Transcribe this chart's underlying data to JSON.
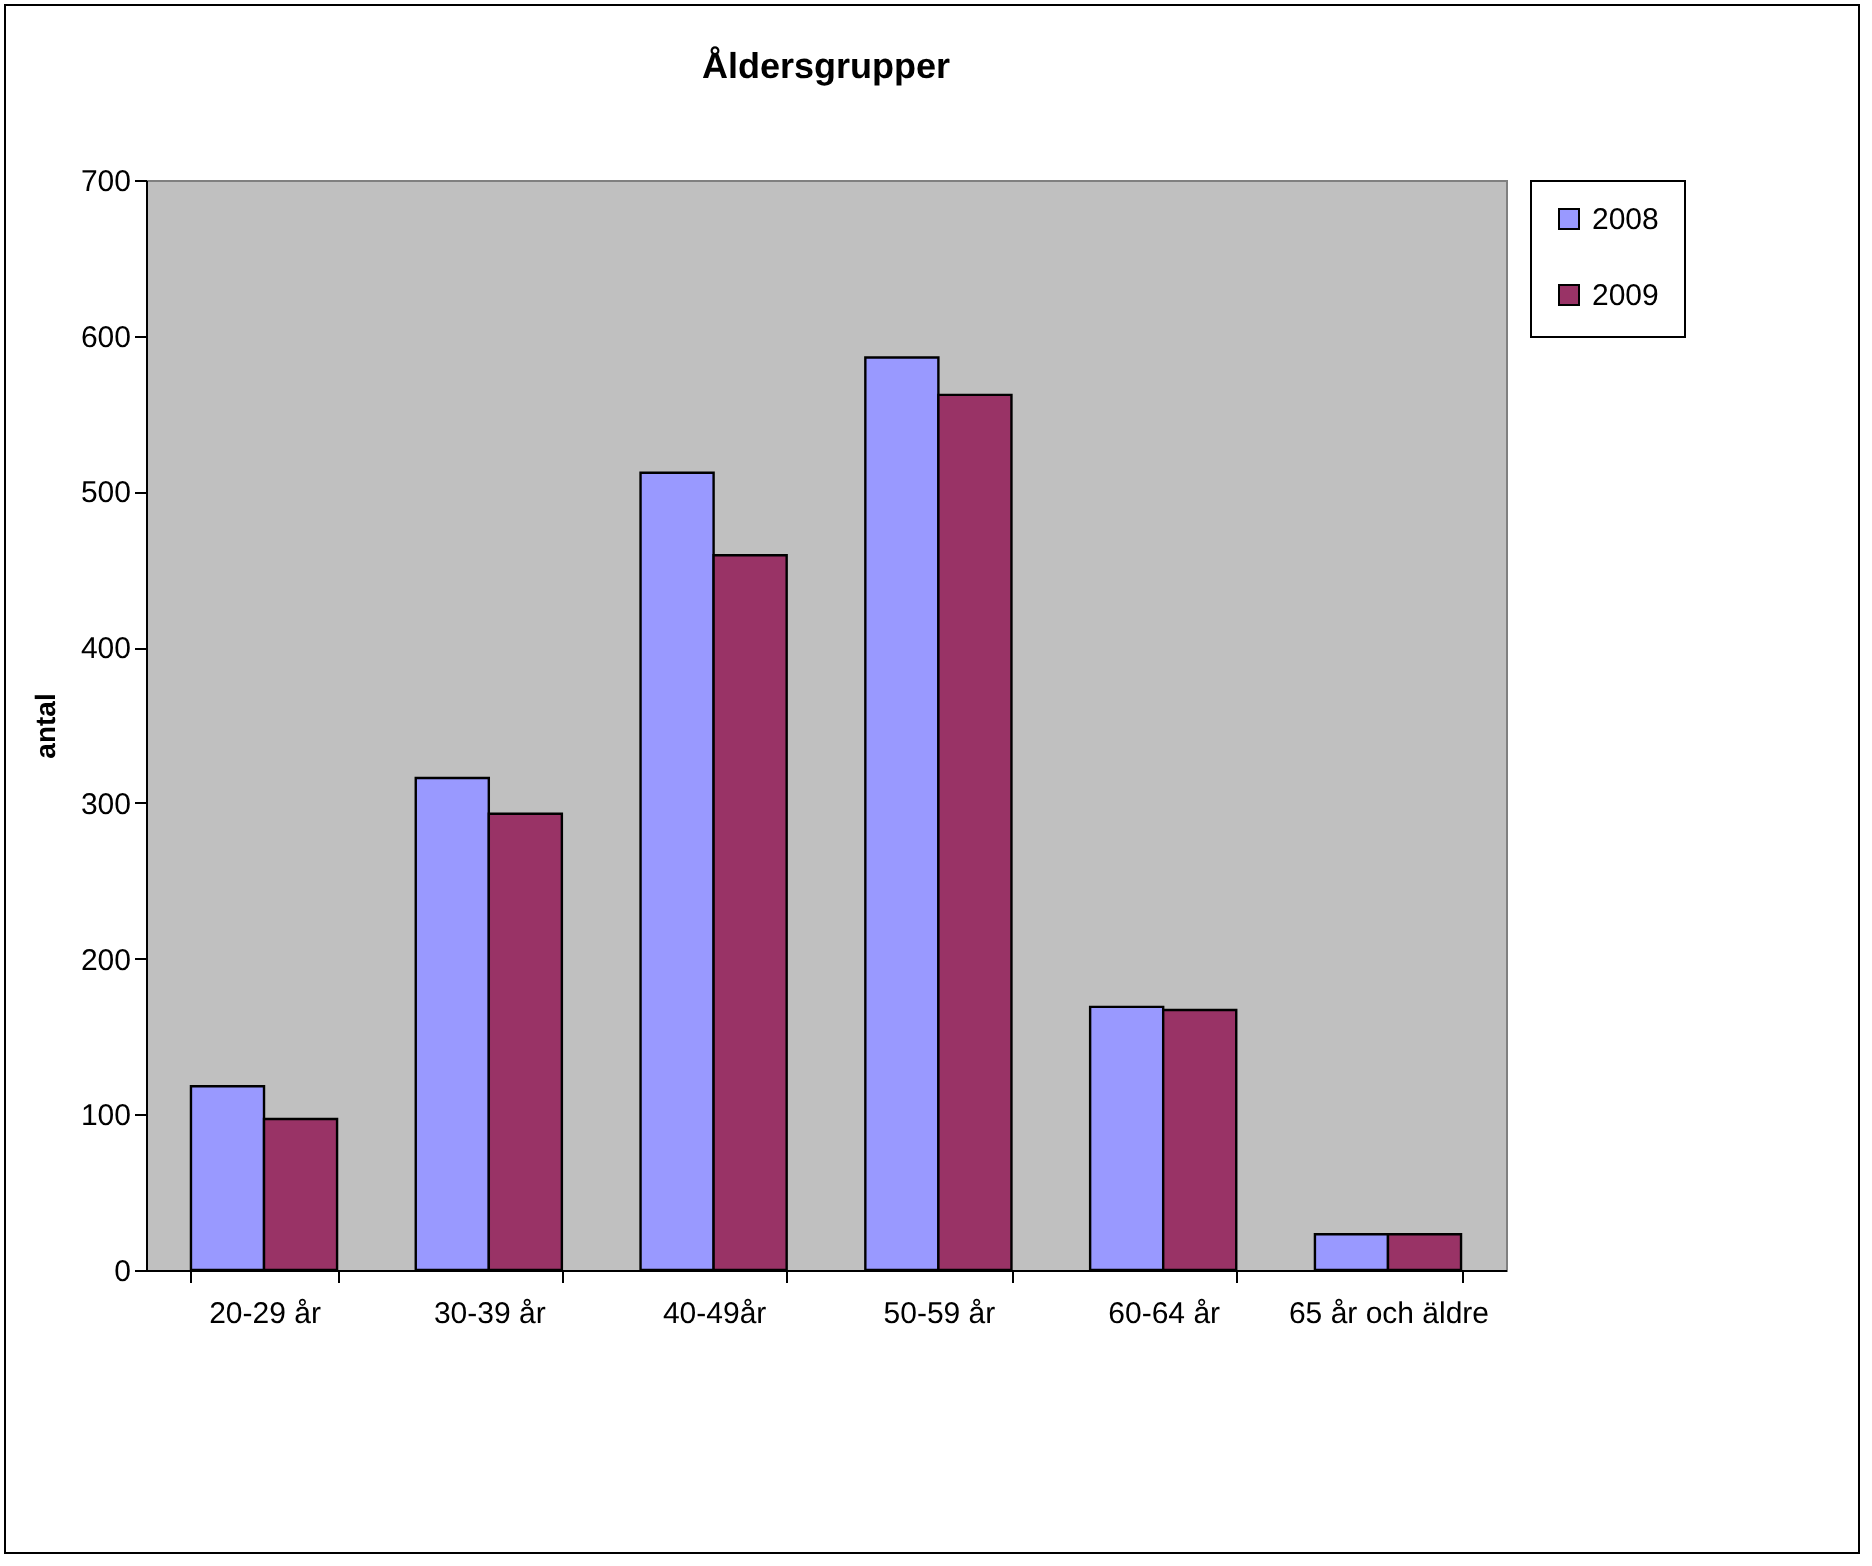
{
  "chart_data": {
    "type": "bar",
    "title": "Åldersgrupper",
    "ylabel": "antal",
    "categories": [
      "20-29 år",
      "30-39 år",
      "40-49år",
      "50-59 år",
      "60-64 år",
      "65 år och äldre"
    ],
    "series": [
      {
        "name": "2008",
        "color": "#9999ff",
        "values": [
          118,
          316,
          512,
          586,
          169,
          23
        ]
      },
      {
        "name": "2009",
        "color": "#993366",
        "values": [
          97,
          293,
          459,
          562,
          167,
          23
        ]
      }
    ],
    "ylim": [
      0,
      700
    ],
    "yticks": [
      0,
      100,
      200,
      300,
      400,
      500,
      600,
      700
    ],
    "grid": false,
    "legend": "right"
  }
}
